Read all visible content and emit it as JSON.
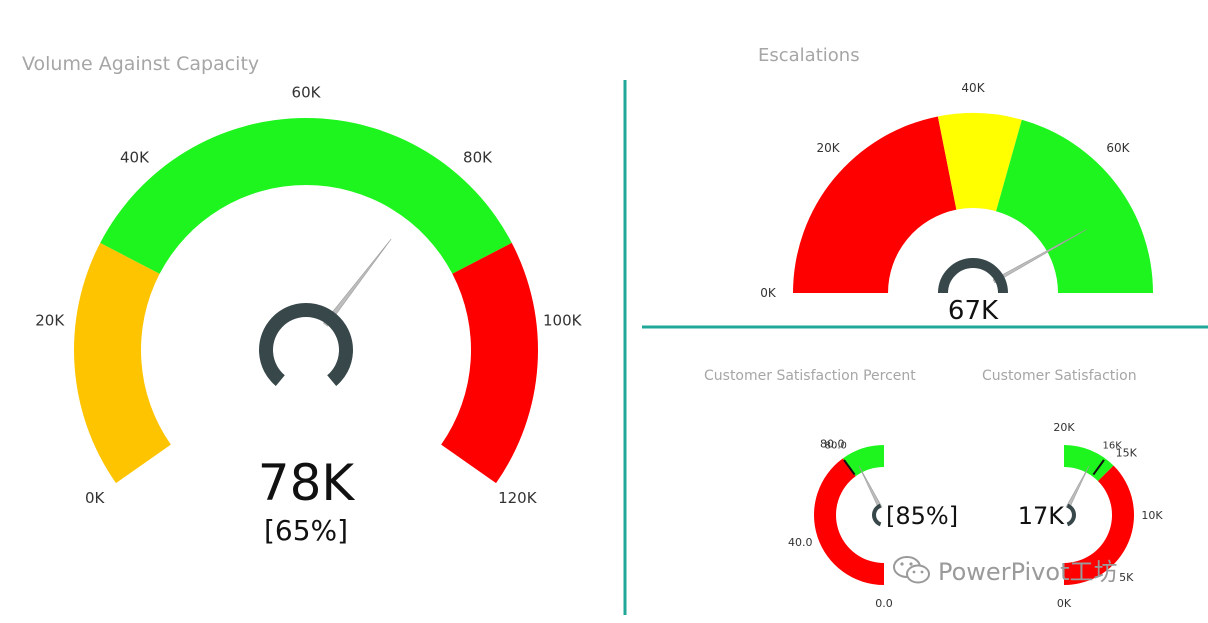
{
  "charts": {
    "volume": {
      "title": "Volume Against Capacity",
      "value_text": "78K",
      "percent_text": "[65%]"
    },
    "escalations": {
      "title": "Escalations",
      "value_text": "67K"
    },
    "csat_percent": {
      "title": "Customer Satisfaction Percent",
      "value_text": "[85%]"
    },
    "csat": {
      "title": "Customer Satisfaction",
      "value_text": "17K"
    }
  },
  "colors": {
    "green": "#1ef51e",
    "red": "#ff0000",
    "yellow": "#ffff00",
    "amber": "#ffc400",
    "hub": "#37474a",
    "needle": "#bdbdbd",
    "divider": "#1fa79a",
    "title": "#a6a6a6"
  },
  "watermark": {
    "text": "PowerPivot工坊"
  },
  "chart_data": [
    {
      "type": "gauge",
      "title": "Volume Against Capacity",
      "min": 0,
      "max": 120000,
      "value": 78000,
      "value_label": "78K",
      "percent_label": "[65%]",
      "bands": [
        {
          "from": 0,
          "to": 30000,
          "color": "#ffc400"
        },
        {
          "from": 30000,
          "to": 90000,
          "color": "#1ef51e"
        },
        {
          "from": 90000,
          "to": 120000,
          "color": "#ff0000"
        }
      ],
      "ticks": [
        {
          "value": 0,
          "label": "0K"
        },
        {
          "value": 20000,
          "label": "20K"
        },
        {
          "value": 40000,
          "label": "40K"
        },
        {
          "value": 60000,
          "label": "60K"
        },
        {
          "value": 80000,
          "label": "80K"
        },
        {
          "value": 100000,
          "label": "100K"
        },
        {
          "value": 120000,
          "label": "120K"
        }
      ]
    },
    {
      "type": "gauge",
      "title": "Escalations",
      "min": 0,
      "max": 80000,
      "value": 67000,
      "value_label": "67K",
      "bands": [
        {
          "from": 0,
          "to": 35000,
          "color": "#ff0000"
        },
        {
          "from": 35000,
          "to": 47000,
          "color": "#ffff00"
        },
        {
          "from": 47000,
          "to": 80000,
          "color": "#1ef51e"
        }
      ],
      "ticks": [
        {
          "value": 0,
          "label": "0K"
        },
        {
          "value": 20000,
          "label": "20K"
        },
        {
          "value": 40000,
          "label": "40K"
        },
        {
          "value": 60000,
          "label": "60K"
        }
      ]
    },
    {
      "type": "gauge",
      "title": "Customer Satisfaction Percent",
      "min": 0,
      "max": 100,
      "value": 85,
      "value_label": "[85%]",
      "target": 80,
      "target_label": "80.0",
      "bands": [
        {
          "from": 0,
          "to": 80,
          "color": "#ff0000"
        },
        {
          "from": 80,
          "to": 100,
          "color": "#1ef51e"
        }
      ],
      "ticks": [
        {
          "value": 0,
          "label": "0.0"
        },
        {
          "value": 40,
          "label": "40.0"
        },
        {
          "value": 80,
          "label": "80.0"
        }
      ]
    },
    {
      "type": "gauge",
      "title": "Customer Satisfaction",
      "min": 0,
      "max": 20000,
      "value": 17000,
      "value_label": "17K",
      "target": 16000,
      "target_label": "16K",
      "bands": [
        {
          "from": 0,
          "to": 15000,
          "color": "#ff0000"
        },
        {
          "from": 15000,
          "to": 20000,
          "color": "#1ef51e"
        }
      ],
      "ticks": [
        {
          "value": 0,
          "label": "0K"
        },
        {
          "value": 5000,
          "label": "5K"
        },
        {
          "value": 10000,
          "label": "10K"
        },
        {
          "value": 15000,
          "label": "15K"
        },
        {
          "value": 20000,
          "label": "20K"
        }
      ]
    }
  ]
}
